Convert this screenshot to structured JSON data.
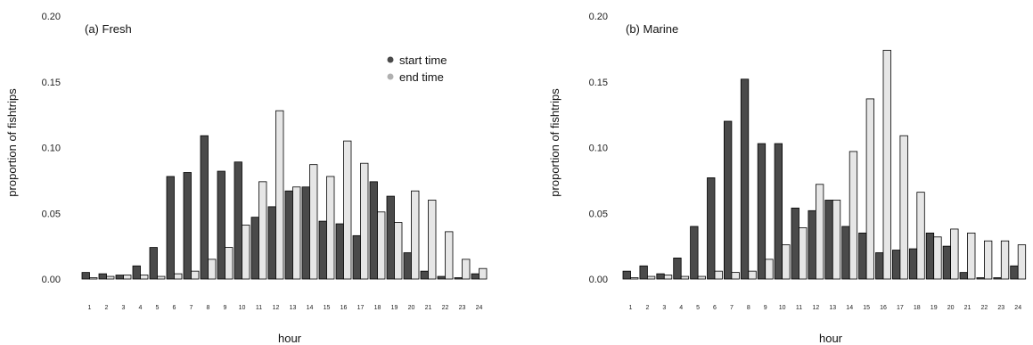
{
  "colors": {
    "start": "#4a4a4a",
    "end": "#e6e6e6",
    "stroke": "#000000",
    "legend_end": "#b0b0b0"
  },
  "chart_data": [
    {
      "type": "bar",
      "title": "(a) Fresh",
      "xlabel": "hour",
      "ylabel": "proportion of fishtrips",
      "ylim": [
        0,
        0.2
      ],
      "yticks": [
        "0.00",
        "0.05",
        "0.10",
        "0.15",
        "0.20"
      ],
      "categories": [
        "1",
        "2",
        "3",
        "4",
        "5",
        "6",
        "7",
        "8",
        "9",
        "10",
        "11",
        "12",
        "13",
        "14",
        "15",
        "16",
        "17",
        "18",
        "19",
        "20",
        "21",
        "22",
        "23",
        "24"
      ],
      "legend": {
        "position": "top-right",
        "entries": [
          "start time",
          "end time"
        ]
      },
      "series": [
        {
          "name": "start time",
          "values": [
            0.005,
            0.004,
            0.003,
            0.01,
            0.024,
            0.078,
            0.081,
            0.109,
            0.082,
            0.089,
            0.047,
            0.055,
            0.067,
            0.07,
            0.044,
            0.042,
            0.033,
            0.074,
            0.063,
            0.02,
            0.006,
            0.002,
            0.001,
            0.004
          ]
        },
        {
          "name": "end time",
          "values": [
            0.001,
            0.002,
            0.003,
            0.003,
            0.002,
            0.004,
            0.006,
            0.015,
            0.024,
            0.041,
            0.074,
            0.128,
            0.07,
            0.087,
            0.078,
            0.105,
            0.088,
            0.051,
            0.043,
            0.067,
            0.06,
            0.036,
            0.015,
            0.008
          ]
        }
      ]
    },
    {
      "type": "bar",
      "title": "(b) Marine",
      "xlabel": "hour",
      "ylabel": "proportion of fishtrips",
      "ylim": [
        0,
        0.2
      ],
      "yticks": [
        "0.00",
        "0.05",
        "0.10",
        "0.15",
        "0.20"
      ],
      "categories": [
        "1",
        "2",
        "3",
        "4",
        "5",
        "6",
        "7",
        "8",
        "9",
        "10",
        "11",
        "12",
        "13",
        "14",
        "15",
        "16",
        "17",
        "18",
        "19",
        "20",
        "21",
        "22",
        "23",
        "24"
      ],
      "series": [
        {
          "name": "start time",
          "values": [
            0.006,
            0.01,
            0.004,
            0.016,
            0.04,
            0.077,
            0.12,
            0.152,
            0.103,
            0.103,
            0.054,
            0.052,
            0.06,
            0.04,
            0.035,
            0.02,
            0.022,
            0.023,
            0.035,
            0.025,
            0.005,
            0.001,
            0.001,
            0.01
          ]
        },
        {
          "name": "end time",
          "values": [
            0.001,
            0.002,
            0.003,
            0.002,
            0.002,
            0.006,
            0.005,
            0.006,
            0.015,
            0.026,
            0.039,
            0.072,
            0.06,
            0.097,
            0.137,
            0.174,
            0.109,
            0.066,
            0.032,
            0.038,
            0.035,
            0.029,
            0.029,
            0.026
          ]
        }
      ]
    }
  ]
}
